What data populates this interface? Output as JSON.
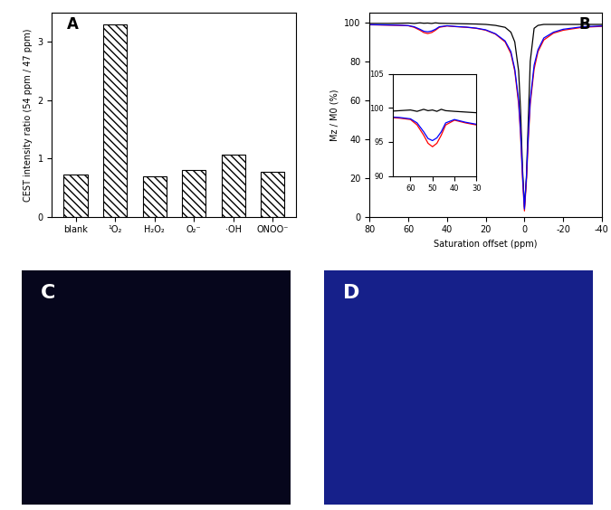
{
  "chart_data": [
    {
      "type": "bar",
      "annotations": [
        "A"
      ],
      "y_label": "CEST intensity ratio (54 ppm / 47 ppm)",
      "categories": [
        "blank",
        "¹O₂",
        "H₂O₂",
        "O₂⁻",
        "·OH",
        "ONOO⁻"
      ],
      "values": [
        0.72,
        3.3,
        0.7,
        0.8,
        1.07,
        0.77
      ],
      "color": "#ffffff",
      "ylim": [
        0,
        3.5
      ],
      "yticks": [
        0,
        1,
        2,
        3
      ]
    },
    {
      "type": "line",
      "annotations": [
        "B"
      ],
      "x_label": "Saturation offset (ppm)",
      "y_label": "Mz / M0 (%)",
      "x": [
        80,
        75,
        70,
        65,
        60,
        57,
        54,
        52,
        50,
        48,
        46,
        44,
        40,
        35,
        30,
        25,
        20,
        15,
        10,
        7,
        5,
        3,
        2,
        1,
        0,
        -1,
        -2,
        -3,
        -5,
        -7,
        -10,
        -15,
        -20,
        -30,
        -40
      ],
      "series": [
        {
          "color": "#000000",
          "values": [
            99.5,
            99.5,
            99.5,
            99.6,
            99.7,
            99.5,
            99.8,
            99.6,
            99.7,
            99.5,
            99.8,
            99.6,
            99.5,
            99.4,
            99.3,
            99.2,
            99,
            98.5,
            97.5,
            95,
            90,
            75,
            55,
            25,
            5,
            20,
            50,
            80,
            97,
            98.5,
            99,
            99,
            99,
            99,
            99
          ]
        },
        {
          "color": "#ff0000",
          "values": [
            98.8,
            98.7,
            98.6,
            98.5,
            98.3,
            97.5,
            96,
            94.8,
            94.3,
            94.8,
            96,
            97.5,
            98.2,
            97.8,
            97.5,
            97,
            96,
            94,
            90,
            84,
            75,
            58,
            42,
            20,
            3,
            18,
            40,
            58,
            76,
            85,
            91,
            94.5,
            96,
            97.5,
            98
          ]
        },
        {
          "color": "#0000ff",
          "values": [
            98.9,
            98.8,
            98.7,
            98.6,
            98.4,
            97.8,
            96.5,
            95.5,
            95.2,
            95.6,
            96.5,
            97.8,
            98.3,
            97.9,
            97.6,
            97.1,
            96.2,
            94.2,
            90.5,
            85,
            76,
            60,
            44,
            22,
            4,
            20,
            42,
            60,
            78,
            86,
            92,
            95,
            96.5,
            97.8,
            98.2
          ]
        }
      ],
      "xlim": [
        80,
        -40
      ],
      "xticks": [
        80,
        60,
        40,
        20,
        0,
        -20,
        -40
      ],
      "ylim": [
        0,
        105
      ],
      "yticks": [
        0,
        20,
        40,
        60,
        80,
        100
      ],
      "inset": {
        "xlim": [
          68,
          30
        ],
        "xticks": [
          60,
          50,
          40,
          30
        ],
        "ylim": [
          90,
          105
        ],
        "yticks": [
          90,
          95,
          100,
          105
        ]
      }
    },
    {
      "type": "image",
      "annotations": [
        "C"
      ],
      "color": "#06061c"
    },
    {
      "type": "image",
      "annotations": [
        "D"
      ],
      "color": "#16208a"
    }
  ]
}
